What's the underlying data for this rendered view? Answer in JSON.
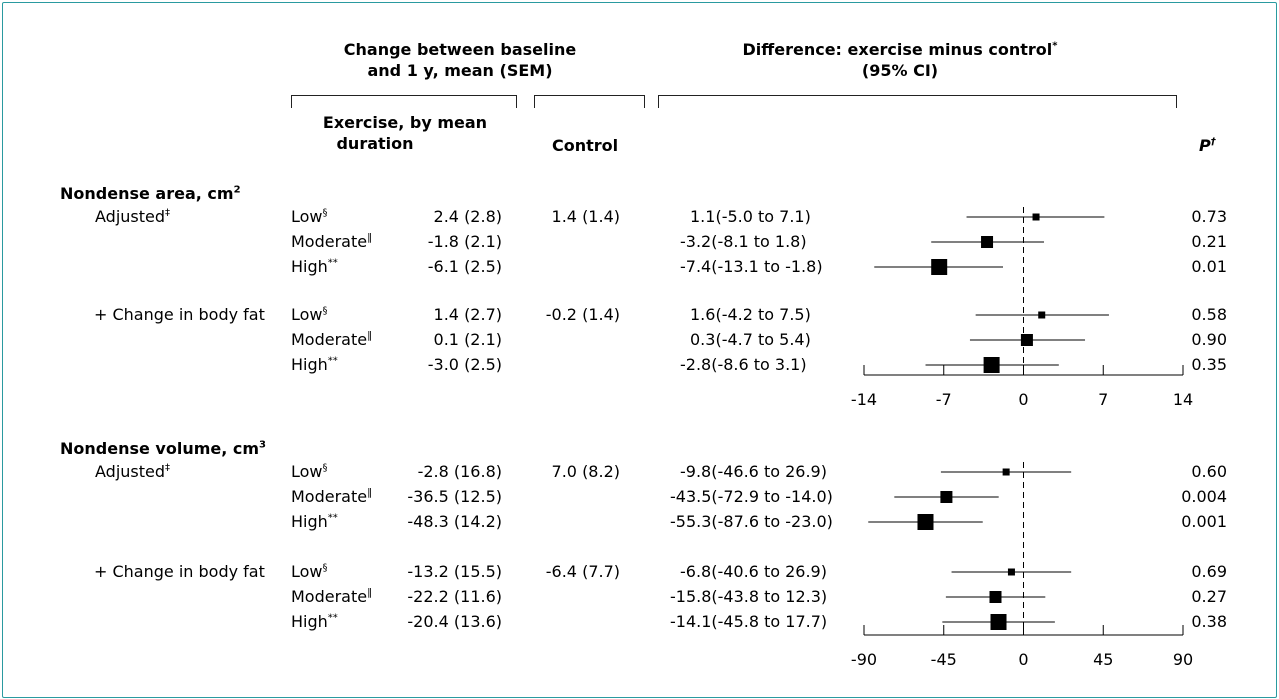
{
  "headers": {
    "change": "Change between baseline and 1 y, mean (SEM)",
    "change_l1": "Change between baseline",
    "change_l2": "and 1 y, mean (SEM)",
    "diff_l1": "Difference: exercise minus control",
    "diff_sup": "*",
    "diff_l2": "(95% CI)",
    "exercise_l1": "Exercise, by mean",
    "exercise_l2": "duration",
    "control": "Control",
    "p": "P",
    "p_sup": "†"
  },
  "groups": {
    "low": "Low",
    "low_sup": "§",
    "moderate": "Moderate",
    "moderate_sup": "‖",
    "high": "High",
    "high_sup": "**"
  },
  "sections": [
    {
      "title": "Nondense area, cm",
      "title_sup": "2",
      "subs": [
        {
          "label": "Adjusted",
          "label_sup": "‡",
          "control": "1.4 (1.4)",
          "rows": [
            {
              "mean": "2.4 (2.8)",
              "ci": "1.1(-5.0 to 7.1)",
              "p": "0.73"
            },
            {
              "mean": "-1.8 (2.1)",
              "ci": "-3.2(-8.1 to 1.8)",
              "p": "0.21"
            },
            {
              "mean": "-6.1 (2.5)",
              "ci": "-7.4(-13.1 to -1.8)",
              "p": "0.01"
            }
          ]
        },
        {
          "label": "+ Change in body fat",
          "label_sup": "",
          "control": "-0.2 (1.4)",
          "rows": [
            {
              "mean": "1.4 (2.7)",
              "ci": "1.6(-4.2 to 7.5)",
              "p": "0.58"
            },
            {
              "mean": "0.1 (2.1)",
              "ci": "0.3(-4.7 to 5.4)",
              "p": "0.90"
            },
            {
              "mean": "-3.0 (2.5)",
              "ci": "-2.8(-8.6 to 3.1)",
              "p": "0.35"
            }
          ]
        }
      ]
    },
    {
      "title": "Nondense volume, cm",
      "title_sup": "3",
      "subs": [
        {
          "label": "Adjusted",
          "label_sup": "‡",
          "control": "7.0 (8.2)",
          "rows": [
            {
              "mean": "-2.8 (16.8)",
              "ci": "-9.8(-46.6 to 26.9)",
              "p": "0.60"
            },
            {
              "mean": "-36.5 (12.5)",
              "ci": "-43.5(-72.9 to -14.0)",
              "p": "0.004"
            },
            {
              "mean": "-48.3 (14.2)",
              "ci": "-55.3(-87.6 to -23.0)",
              "p": "0.001"
            }
          ]
        },
        {
          "label": "+ Change in body fat",
          "label_sup": "",
          "control": "-6.4 (7.7)",
          "rows": [
            {
              "mean": "-13.2 (15.5)",
              "ci": "-6.8(-40.6 to 26.9)",
              "p": "0.69"
            },
            {
              "mean": "-22.2 (11.6)",
              "ci": "-15.8(-43.8 to 12.3)",
              "p": "0.27"
            },
            {
              "mean": "-20.4 (13.6)",
              "ci": "-14.1(-45.8 to 17.7)",
              "p": "0.38"
            }
          ]
        }
      ]
    }
  ],
  "chart_data": [
    {
      "type": "forest",
      "panel": "Nondense area, cm2",
      "xlim": [
        -14,
        14
      ],
      "xticks": [
        -14,
        -7,
        0,
        7,
        14
      ],
      "reference_line": 0,
      "rows": [
        {
          "subgroup": "Adjusted",
          "group": "Low",
          "estimate": 1.1,
          "lower": -5.0,
          "upper": 7.1
        },
        {
          "subgroup": "Adjusted",
          "group": "Moderate",
          "estimate": -3.2,
          "lower": -8.1,
          "upper": 1.8
        },
        {
          "subgroup": "Adjusted",
          "group": "High",
          "estimate": -7.4,
          "lower": -13.1,
          "upper": -1.8
        },
        {
          "subgroup": "+ Change in body fat",
          "group": "Low",
          "estimate": 1.6,
          "lower": -4.2,
          "upper": 7.5
        },
        {
          "subgroup": "+ Change in body fat",
          "group": "Moderate",
          "estimate": 0.3,
          "lower": -4.7,
          "upper": 5.4
        },
        {
          "subgroup": "+ Change in body fat",
          "group": "High",
          "estimate": -2.8,
          "lower": -8.6,
          "upper": 3.1
        }
      ]
    },
    {
      "type": "forest",
      "panel": "Nondense volume, cm3",
      "xlim": [
        -90,
        90
      ],
      "xticks": [
        -90,
        -45,
        0,
        45,
        90
      ],
      "reference_line": 0,
      "rows": [
        {
          "subgroup": "Adjusted",
          "group": "Low",
          "estimate": -9.8,
          "lower": -46.6,
          "upper": 26.9
        },
        {
          "subgroup": "Adjusted",
          "group": "Moderate",
          "estimate": -43.5,
          "lower": -72.9,
          "upper": -14.0
        },
        {
          "subgroup": "Adjusted",
          "group": "High",
          "estimate": -55.3,
          "lower": -87.6,
          "upper": -23.0
        },
        {
          "subgroup": "+ Change in body fat",
          "group": "Low",
          "estimate": -6.8,
          "lower": -40.6,
          "upper": 26.9
        },
        {
          "subgroup": "+ Change in body fat",
          "group": "Moderate",
          "estimate": -15.8,
          "lower": -43.8,
          "upper": 12.3
        },
        {
          "subgroup": "+ Change in body fat",
          "group": "High",
          "estimate": -14.1,
          "lower": -45.8,
          "upper": 17.7
        }
      ]
    }
  ]
}
